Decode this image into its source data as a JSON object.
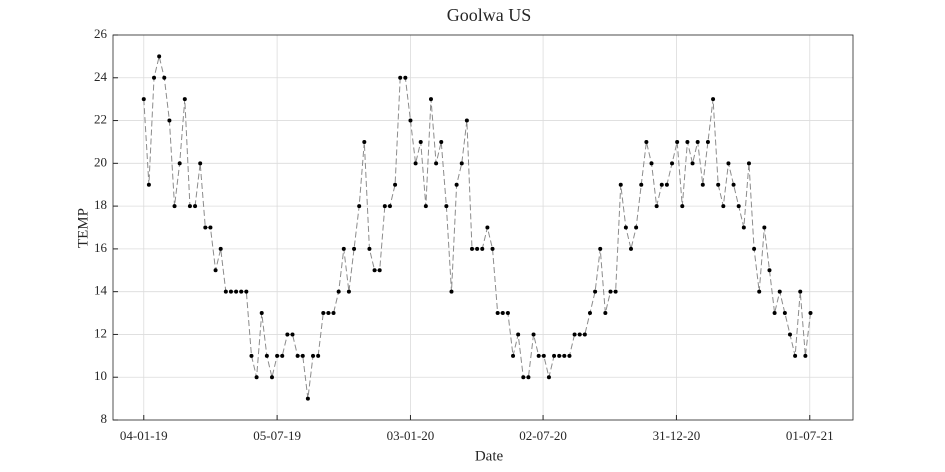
{
  "chart_data": {
    "type": "line",
    "title": "Goolwa US",
    "x_label": "Date",
    "y_label": "TEMP",
    "x": [
      "04-01-19",
      "11-01-19",
      "18-01-19",
      "25-01-19",
      "01-02-19",
      "08-02-19",
      "15-02-19",
      "22-02-19",
      "01-03-19",
      "08-03-19",
      "15-03-19",
      "22-03-19",
      "29-03-19",
      "05-04-19",
      "12-04-19",
      "19-04-19",
      "26-04-19",
      "03-05-19",
      "10-05-19",
      "17-05-19",
      "24-05-19",
      "31-05-19",
      "07-06-19",
      "14-06-19",
      "21-06-19",
      "28-06-19",
      "05-07-19",
      "12-07-19",
      "19-07-19",
      "26-07-19",
      "02-08-19",
      "09-08-19",
      "16-08-19",
      "23-08-19",
      "30-08-19",
      "06-09-19",
      "13-09-19",
      "20-09-19",
      "27-09-19",
      "04-10-19",
      "11-10-19",
      "18-10-19",
      "25-10-19",
      "01-11-19",
      "08-11-19",
      "15-11-19",
      "22-11-19",
      "29-11-19",
      "06-12-19",
      "13-12-19",
      "20-12-19",
      "27-12-19",
      "03-01-20",
      "10-01-20",
      "17-01-20",
      "24-01-20",
      "31-01-20",
      "07-02-20",
      "14-02-20",
      "21-02-20",
      "28-02-20",
      "06-03-20",
      "13-03-20",
      "20-03-20",
      "27-03-20",
      "03-04-20",
      "10-04-20",
      "17-04-20",
      "24-04-20",
      "01-05-20",
      "08-05-20",
      "15-05-20",
      "22-05-20",
      "29-05-20",
      "05-06-20",
      "12-06-20",
      "19-06-20",
      "26-06-20",
      "03-07-20",
      "10-07-20",
      "17-07-20",
      "24-07-20",
      "31-07-20",
      "07-08-20",
      "14-08-20",
      "21-08-20",
      "28-08-20",
      "04-09-20",
      "11-09-20",
      "18-09-20",
      "25-09-20",
      "02-10-20",
      "09-10-20",
      "16-10-20",
      "23-10-20",
      "30-10-20",
      "06-11-20",
      "13-11-20",
      "20-11-20",
      "27-11-20",
      "04-12-20",
      "11-12-20",
      "18-12-20",
      "25-12-20",
      "01-01-21",
      "08-01-21",
      "15-01-21",
      "22-01-21",
      "29-01-21",
      "05-02-21",
      "12-02-21",
      "19-02-21",
      "26-02-21",
      "05-03-21",
      "12-03-21",
      "19-03-21",
      "26-03-21",
      "02-04-21",
      "09-04-21",
      "16-04-21",
      "23-04-21",
      "30-04-21",
      "07-05-21",
      "14-05-21",
      "21-05-21",
      "28-05-21",
      "04-06-21",
      "11-06-21",
      "18-06-21",
      "25-06-21",
      "02-07-21"
    ],
    "series": [
      {
        "color": "#000000",
        "values": [
          23,
          19,
          24,
          25,
          24,
          22,
          18,
          20,
          23,
          18,
          18,
          20,
          17,
          17,
          15,
          16,
          14,
          14,
          14,
          14,
          14,
          11,
          10,
          13,
          11,
          10,
          11,
          11,
          12,
          12,
          11,
          11,
          9,
          11,
          11,
          13,
          13,
          13,
          14,
          16,
          14,
          16,
          18,
          21,
          16,
          15,
          15,
          18,
          18,
          19,
          24,
          24,
          22,
          20,
          21,
          18,
          23,
          20,
          21,
          18,
          14,
          19,
          20,
          22,
          16,
          16,
          16,
          17,
          16,
          13,
          13,
          13,
          11,
          12,
          10,
          10,
          12,
          11,
          11,
          10,
          11,
          11,
          11,
          11,
          12,
          12,
          12,
          13,
          14,
          16,
          13,
          14,
          14,
          19,
          17,
          16,
          17,
          19,
          21,
          20,
          18,
          19,
          19,
          20,
          21,
          18,
          21,
          20,
          21,
          19,
          21,
          23,
          19,
          18,
          20,
          19,
          18,
          17,
          20,
          16,
          14,
          17,
          15,
          13,
          14,
          13,
          12,
          11,
          14,
          11,
          13
        ]
      }
    ],
    "xlim": [
      "23-11-18",
      "29-08-21"
    ],
    "xticks": [
      "04-01-19",
      "05-07-19",
      "03-01-20",
      "02-07-20",
      "31-12-20",
      "01-07-21"
    ],
    "ylim": [
      8,
      26
    ],
    "yticks": [
      8,
      10,
      12,
      14,
      16,
      18,
      20,
      22,
      24,
      26
    ],
    "grid": true
  }
}
